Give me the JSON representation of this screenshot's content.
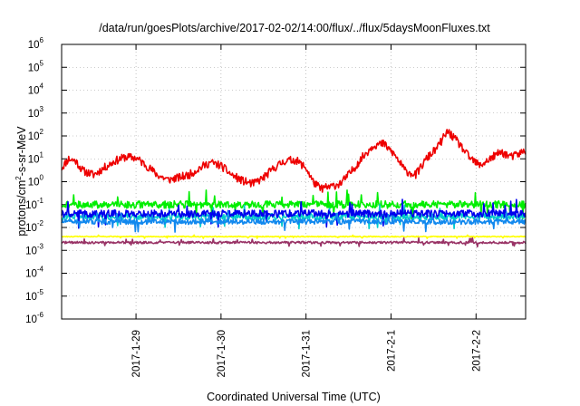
{
  "chart_data": {
    "type": "line",
    "title": "/data/run/goesPlots/archive/2017-02-02/14:00/flux/../flux/5daysMoonFluxes.txt",
    "xlabel": "Coordinated Universal Time (UTC)",
    "ylabel_parts": {
      "before": "protons/cm",
      "sup": "2",
      "after": "-s-sr-MeV"
    },
    "y_scale": "log",
    "ylim": [
      1e-06,
      1000000.0
    ],
    "xlim": [
      "2017-01-28T03:00",
      "2017-02-02T14:00"
    ],
    "grid": true,
    "y_ticks": [
      {
        "base": "10",
        "exp": "-6",
        "value": 1e-06
      },
      {
        "base": "10",
        "exp": "-5",
        "value": 1e-05
      },
      {
        "base": "10",
        "exp": "-4",
        "value": 0.0001
      },
      {
        "base": "10",
        "exp": "-3",
        "value": 0.001
      },
      {
        "base": "10",
        "exp": "-2",
        "value": 0.01
      },
      {
        "base": "10",
        "exp": "-1",
        "value": 0.1
      },
      {
        "base": "10",
        "exp": "0",
        "value": 1
      },
      {
        "base": "10",
        "exp": "1",
        "value": 10
      },
      {
        "base": "10",
        "exp": "2",
        "value": 100
      },
      {
        "base": "10",
        "exp": "3",
        "value": 1000
      },
      {
        "base": "10",
        "exp": "4",
        "value": 10000
      },
      {
        "base": "10",
        "exp": "5",
        "value": 100000
      },
      {
        "base": "10",
        "exp": "6",
        "value": 1000000
      }
    ],
    "x_ticks": [
      {
        "label": "2017-1-29",
        "value": "2017-01-29T00:00"
      },
      {
        "label": "2017-1-30",
        "value": "2017-01-30T00:00"
      },
      {
        "label": "2017-1-31",
        "value": "2017-01-31T00:00"
      },
      {
        "label": "2017-2-1",
        "value": "2017-02-01T00:00"
      },
      {
        "label": "2017-2-2",
        "value": "2017-02-02T00:00"
      }
    ],
    "series": [
      {
        "color": "#ee0000",
        "points": [
          [
            "2017-01-28T03:00",
            4
          ],
          [
            "2017-01-28T05:00",
            10
          ],
          [
            "2017-01-28T07:00",
            8
          ],
          [
            "2017-01-28T09:00",
            3
          ],
          [
            "2017-01-28T12:00",
            2
          ],
          [
            "2017-01-28T15:00",
            4
          ],
          [
            "2017-01-28T18:00",
            8
          ],
          [
            "2017-01-28T21:00",
            12
          ],
          [
            "2017-01-29T00:00",
            11
          ],
          [
            "2017-01-29T03:00",
            5
          ],
          [
            "2017-01-29T06:00",
            2
          ],
          [
            "2017-01-29T09:00",
            1.2
          ],
          [
            "2017-01-29T12:00",
            1.5
          ],
          [
            "2017-01-29T15:00",
            2
          ],
          [
            "2017-01-29T18:00",
            4
          ],
          [
            "2017-01-29T21:00",
            7
          ],
          [
            "2017-01-30T00:00",
            5
          ],
          [
            "2017-01-30T03:00",
            2
          ],
          [
            "2017-01-30T06:00",
            1.1
          ],
          [
            "2017-01-30T09:00",
            0.8
          ],
          [
            "2017-01-30T12:00",
            1.5
          ],
          [
            "2017-01-30T15:00",
            4
          ],
          [
            "2017-01-30T18:00",
            8
          ],
          [
            "2017-01-30T21:00",
            9
          ],
          [
            "2017-01-31T00:00",
            4
          ],
          [
            "2017-01-31T02:00",
            1
          ],
          [
            "2017-01-31T04:00",
            0.5
          ],
          [
            "2017-01-31T07:00",
            0.6
          ],
          [
            "2017-01-31T10:00",
            0.9
          ],
          [
            "2017-01-31T13:00",
            3
          ],
          [
            "2017-01-31T16:00",
            12
          ],
          [
            "2017-01-31T19:00",
            40
          ],
          [
            "2017-01-31T22:00",
            45
          ],
          [
            "2017-02-01T01:00",
            15
          ],
          [
            "2017-02-01T04:00",
            3
          ],
          [
            "2017-02-01T07:00",
            2
          ],
          [
            "2017-02-01T10:00",
            10
          ],
          [
            "2017-02-01T13:00",
            30
          ],
          [
            "2017-02-01T16:00",
            160
          ],
          [
            "2017-02-01T19:00",
            50
          ],
          [
            "2017-02-01T22:00",
            12
          ],
          [
            "2017-02-02T01:00",
            5
          ],
          [
            "2017-02-02T04:00",
            10
          ],
          [
            "2017-02-02T07:00",
            20
          ],
          [
            "2017-02-02T10:00",
            12
          ],
          [
            "2017-02-02T14:00",
            22
          ]
        ],
        "noise": 0.18,
        "seed": 11
      },
      {
        "color": "#00ee00",
        "base": 0.1,
        "noise": 0.16,
        "seed": 21
      },
      {
        "color": "#00cccc",
        "base": 0.03,
        "noise": 0.14,
        "seed": 31
      },
      {
        "color": "#0000ee",
        "base": 0.04,
        "noise": 0.16,
        "seed": 41
      },
      {
        "color": "#1188ee",
        "base": 0.018,
        "noise": 0.12,
        "seed": 51
      },
      {
        "color": "#ffff00",
        "base": 0.004,
        "noise": 0.02,
        "seed": 61
      },
      {
        "color": "#993366",
        "base": 0.0022,
        "noise": 0.05,
        "seed": 71
      }
    ]
  }
}
